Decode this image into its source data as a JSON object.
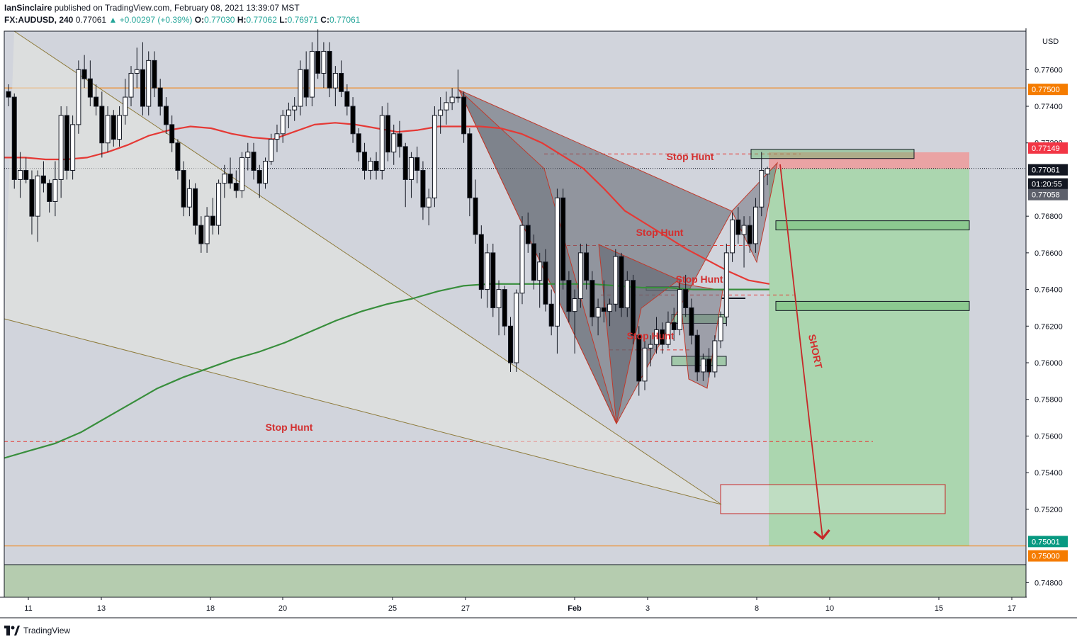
{
  "header": {
    "publisher": "IanSinclaire",
    "published_text": "published on TradingView.com, February 08, 2021 13:39:07 MST",
    "symbol": "FX:AUDUSD, 240",
    "last": "0.77061",
    "change": "▲ +0.00297 (+0.39%)",
    "open_label": "O:",
    "open": "0.77030",
    "high_label": "H:",
    "high": "0.77062",
    "low_label": "L:",
    "low": "0.76971",
    "close_label": "C:",
    "close": "0.77061"
  },
  "footer": {
    "brand": "TradingView",
    "logo_icon": "tradingview-logo-icon"
  },
  "colors": {
    "background": "#d1d4dc",
    "bull_candle": "#ffffff",
    "bear_candle": "#000000",
    "ema_fast": "#e53935",
    "ema_slow": "#388e3c",
    "pattern_fill": "#5d606b",
    "annotation_red": "#c62828",
    "profit_zone": "#a5d6a7",
    "loss_zone": "#ef9a9a",
    "level_line": "#f57c00"
  },
  "chart_data": {
    "type": "candlestick",
    "symbol": "FX:AUDUSD",
    "timeframe": "240",
    "currency": "USD",
    "ylim": [
      0.7472,
      0.7781
    ],
    "y_ticks": [
      "0.77600",
      "0.77400",
      "0.77200",
      "0.76800",
      "0.76600",
      "0.76400",
      "0.76200",
      "0.76000",
      "0.75800",
      "0.75600",
      "0.75400",
      "0.75200",
      "0.74800"
    ],
    "x_ticks": [
      "11",
      "13",
      "18",
      "20",
      "25",
      "27",
      "Feb",
      "3",
      "8",
      "10",
      "15",
      "17"
    ],
    "price_labels": [
      {
        "text": "USD",
        "kind": "unit"
      },
      {
        "text": "0.77500",
        "kind": "level",
        "color": "#f57c00"
      },
      {
        "text": "0.77149",
        "kind": "stop",
        "color": "#f23645"
      },
      {
        "text": "0.77061",
        "kind": "last",
        "color": "#131722"
      },
      {
        "text": "01:20:55",
        "kind": "countdown",
        "color": "#131722"
      },
      {
        "text": "0.77058",
        "kind": "entry",
        "color": "#5d606b"
      },
      {
        "text": "0.75001",
        "kind": "target",
        "color": "#089981"
      },
      {
        "text": "0.75000",
        "kind": "level",
        "color": "#f57c00"
      }
    ],
    "annotations": [
      {
        "text": "Stop Hunt",
        "price": 0.7716
      },
      {
        "text": "Stop Hunt",
        "price": 0.7669
      },
      {
        "text": "Stop Hunt",
        "price": 0.7641
      },
      {
        "text": "Stop Hunt",
        "price": 0.761
      },
      {
        "text": "Stop Hunt",
        "price": 0.756
      },
      {
        "text": "SHORT",
        "price": 0.76
      }
    ],
    "position": {
      "side": "short",
      "entry": 0.77058,
      "stop": 0.77149,
      "target": 0.75001
    },
    "horizontal_levels": [
      0.775,
      0.75
    ],
    "candles_ohlc": [
      [
        0.7748,
        0.7752,
        0.774,
        0.7745
      ],
      [
        0.7745,
        0.7747,
        0.7695,
        0.77
      ],
      [
        0.77,
        0.7715,
        0.769,
        0.7705
      ],
      [
        0.7705,
        0.7712,
        0.7698,
        0.77
      ],
      [
        0.77,
        0.7705,
        0.767,
        0.768
      ],
      [
        0.768,
        0.7705,
        0.7666,
        0.7702
      ],
      [
        0.7702,
        0.771,
        0.7693,
        0.7698
      ],
      [
        0.7698,
        0.77,
        0.7682,
        0.7688
      ],
      [
        0.7688,
        0.771,
        0.768,
        0.77
      ],
      [
        0.77,
        0.774,
        0.769,
        0.7735
      ],
      [
        0.7735,
        0.774,
        0.77,
        0.7705
      ],
      [
        0.7705,
        0.7735,
        0.77,
        0.773
      ],
      [
        0.773,
        0.7765,
        0.7725,
        0.776
      ],
      [
        0.776,
        0.7768,
        0.775,
        0.7755
      ],
      [
        0.7755,
        0.7765,
        0.774,
        0.7745
      ],
      [
        0.7745,
        0.7752,
        0.7735,
        0.774
      ],
      [
        0.774,
        0.7748,
        0.7712,
        0.772
      ],
      [
        0.772,
        0.774,
        0.7715,
        0.7735
      ],
      [
        0.7735,
        0.7738,
        0.7718,
        0.7722
      ],
      [
        0.7722,
        0.774,
        0.7718,
        0.7735
      ],
      [
        0.7735,
        0.7755,
        0.773,
        0.7745
      ],
      [
        0.7745,
        0.7762,
        0.774,
        0.7758
      ],
      [
        0.7758,
        0.7772,
        0.775,
        0.776
      ],
      [
        0.776,
        0.7775,
        0.7735,
        0.774
      ],
      [
        0.774,
        0.777,
        0.7735,
        0.7765
      ],
      [
        0.7765,
        0.777,
        0.7745,
        0.775
      ],
      [
        0.775,
        0.7755,
        0.7735,
        0.774
      ],
      [
        0.774,
        0.7745,
        0.7725,
        0.773
      ],
      [
        0.773,
        0.7735,
        0.7715,
        0.772
      ],
      [
        0.772,
        0.7722,
        0.77,
        0.7705
      ],
      [
        0.7705,
        0.771,
        0.768,
        0.7685
      ],
      [
        0.7685,
        0.77,
        0.768,
        0.7695
      ],
      [
        0.7695,
        0.7698,
        0.767,
        0.7675
      ],
      [
        0.7675,
        0.768,
        0.766,
        0.7665
      ],
      [
        0.7665,
        0.7685,
        0.766,
        0.768
      ],
      [
        0.768,
        0.769,
        0.767,
        0.7675
      ],
      [
        0.7675,
        0.77,
        0.767,
        0.7698
      ],
      [
        0.7698,
        0.7708,
        0.769,
        0.7703
      ],
      [
        0.7703,
        0.7712,
        0.7695,
        0.7698
      ],
      [
        0.7698,
        0.7705,
        0.769,
        0.7694
      ],
      [
        0.7694,
        0.7715,
        0.769,
        0.7712
      ],
      [
        0.7712,
        0.772,
        0.7705,
        0.7715
      ],
      [
        0.7715,
        0.772,
        0.77,
        0.7705
      ],
      [
        0.7705,
        0.7708,
        0.769,
        0.7698
      ],
      [
        0.7698,
        0.7712,
        0.7695,
        0.771
      ],
      [
        0.771,
        0.7725,
        0.7708,
        0.7722
      ],
      [
        0.7722,
        0.773,
        0.7715,
        0.7725
      ],
      [
        0.7725,
        0.7738,
        0.772,
        0.7735
      ],
      [
        0.7735,
        0.7742,
        0.7728,
        0.7738
      ],
      [
        0.7738,
        0.7745,
        0.7732,
        0.774
      ],
      [
        0.774,
        0.7765,
        0.7735,
        0.776
      ],
      [
        0.776,
        0.777,
        0.774,
        0.7745
      ],
      [
        0.7745,
        0.7775,
        0.774,
        0.777
      ],
      [
        0.777,
        0.7782,
        0.7755,
        0.7758
      ],
      [
        0.7758,
        0.7775,
        0.775,
        0.777
      ],
      [
        0.777,
        0.7775,
        0.7745,
        0.775
      ],
      [
        0.775,
        0.7762,
        0.774,
        0.7758
      ],
      [
        0.7758,
        0.7765,
        0.7745,
        0.7748
      ],
      [
        0.7748,
        0.7752,
        0.7735,
        0.774
      ],
      [
        0.774,
        0.7745,
        0.772,
        0.7725
      ],
      [
        0.7725,
        0.7728,
        0.771,
        0.7715
      ],
      [
        0.7715,
        0.772,
        0.77,
        0.7705
      ],
      [
        0.7705,
        0.7712,
        0.77,
        0.771
      ],
      [
        0.771,
        0.7715,
        0.77,
        0.7705
      ],
      [
        0.7705,
        0.774,
        0.77,
        0.7735
      ],
      [
        0.7735,
        0.7742,
        0.771,
        0.7715
      ],
      [
        0.7715,
        0.773,
        0.7708,
        0.7725
      ],
      [
        0.7725,
        0.7732,
        0.7712,
        0.7718
      ],
      [
        0.7718,
        0.772,
        0.7685,
        0.77
      ],
      [
        0.77,
        0.7715,
        0.769,
        0.7712
      ],
      [
        0.7712,
        0.7718,
        0.7698,
        0.7705
      ],
      [
        0.7705,
        0.771,
        0.7678,
        0.7685
      ],
      [
        0.7685,
        0.7695,
        0.7675,
        0.769
      ],
      [
        0.769,
        0.774,
        0.7685,
        0.7735
      ],
      [
        0.7735,
        0.7745,
        0.7725,
        0.7738
      ],
      [
        0.7738,
        0.7748,
        0.773,
        0.7742
      ],
      [
        0.7742,
        0.775,
        0.7738,
        0.7745
      ],
      [
        0.7745,
        0.776,
        0.7742,
        0.7745
      ],
      [
        0.7745,
        0.7748,
        0.772,
        0.7725
      ],
      [
        0.7725,
        0.7728,
        0.768,
        0.769
      ],
      [
        0.769,
        0.77,
        0.7665,
        0.767
      ],
      [
        0.767,
        0.7675,
        0.7635,
        0.764
      ],
      [
        0.764,
        0.7665,
        0.763,
        0.766
      ],
      [
        0.766,
        0.7665,
        0.7625,
        0.763
      ],
      [
        0.763,
        0.7645,
        0.7615,
        0.764
      ],
      [
        0.764,
        0.7642,
        0.7615,
        0.762
      ],
      [
        0.762,
        0.7625,
        0.7595,
        0.76
      ],
      [
        0.76,
        0.764,
        0.7595,
        0.7638
      ],
      [
        0.7638,
        0.768,
        0.7632,
        0.7675
      ],
      [
        0.7675,
        0.7682,
        0.766,
        0.7665
      ],
      [
        0.7665,
        0.767,
        0.764,
        0.7645
      ],
      [
        0.7645,
        0.766,
        0.763,
        0.7655
      ],
      [
        0.7655,
        0.7662,
        0.7628,
        0.7632
      ],
      [
        0.7632,
        0.764,
        0.7615,
        0.762
      ],
      [
        0.762,
        0.7695,
        0.7605,
        0.769
      ],
      [
        0.769,
        0.7695,
        0.764,
        0.7645
      ],
      [
        0.7645,
        0.765,
        0.7622,
        0.7628
      ],
      [
        0.7628,
        0.764,
        0.7605,
        0.7635
      ],
      [
        0.7635,
        0.7665,
        0.763,
        0.766
      ],
      [
        0.766,
        0.7665,
        0.764,
        0.7645
      ],
      [
        0.7645,
        0.765,
        0.762,
        0.7625
      ],
      [
        0.7625,
        0.7635,
        0.7615,
        0.763
      ],
      [
        0.763,
        0.7645,
        0.7622,
        0.7628
      ],
      [
        0.7628,
        0.7635,
        0.762,
        0.7632
      ],
      [
        0.7632,
        0.7662,
        0.7628,
        0.7658
      ],
      [
        0.7658,
        0.766,
        0.7625,
        0.763
      ],
      [
        0.763,
        0.765,
        0.7625,
        0.7645
      ],
      [
        0.7645,
        0.7648,
        0.761,
        0.7615
      ],
      [
        0.7615,
        0.762,
        0.7582,
        0.759
      ],
      [
        0.759,
        0.7612,
        0.7585,
        0.7608
      ],
      [
        0.7608,
        0.7615,
        0.7598,
        0.761
      ],
      [
        0.761,
        0.7625,
        0.7605,
        0.7618
      ],
      [
        0.7618,
        0.7622,
        0.7605,
        0.761
      ],
      [
        0.761,
        0.7628,
        0.7608,
        0.7622
      ],
      [
        0.7622,
        0.763,
        0.7612,
        0.7618
      ],
      [
        0.7618,
        0.7645,
        0.7615,
        0.764
      ],
      [
        0.764,
        0.7648,
        0.7625,
        0.763
      ],
      [
        0.763,
        0.7635,
        0.761,
        0.7615
      ],
      [
        0.7615,
        0.7618,
        0.759,
        0.7595
      ],
      [
        0.7595,
        0.7605,
        0.759,
        0.7602
      ],
      [
        0.7602,
        0.7608,
        0.7592,
        0.7595
      ],
      [
        0.7595,
        0.7615,
        0.7592,
        0.7612
      ],
      [
        0.7612,
        0.7628,
        0.7608,
        0.7625
      ],
      [
        0.7625,
        0.7665,
        0.762,
        0.766
      ],
      [
        0.766,
        0.7682,
        0.7655,
        0.7678
      ],
      [
        0.7678,
        0.7685,
        0.7665,
        0.767
      ],
      [
        0.767,
        0.768,
        0.7652,
        0.7675
      ],
      [
        0.7675,
        0.768,
        0.766,
        0.7665
      ],
      [
        0.7665,
        0.769,
        0.766,
        0.7685
      ],
      [
        0.7685,
        0.7715,
        0.768,
        0.7705
      ],
      [
        0.7703,
        0.7707,
        0.7697,
        0.7706
      ]
    ],
    "series": [
      {
        "name": "",
        "type": "ema",
        "values": [
          0.7712,
          0.7712,
          0.7711,
          0.7711,
          0.7712,
          0.7715,
          0.7719,
          0.7724,
          0.7727,
          0.7729,
          0.7728,
          0.7725,
          0.7723,
          0.7722,
          0.7726,
          0.773,
          0.7731,
          0.773,
          0.7728,
          0.7726,
          0.7727,
          0.7729,
          0.7729,
          0.7729,
          0.7728,
          0.7725,
          0.772,
          0.7713,
          0.7706,
          0.7695,
          0.7683,
          0.7676,
          0.7669,
          0.7662,
          0.7656,
          0.765,
          0.7645,
          0.7643
        ]
      },
      {
        "name": "",
        "type": "ema",
        "values": [
          0.7548,
          0.7552,
          0.7556,
          0.7562,
          0.757,
          0.7578,
          0.7586,
          0.7592,
          0.7597,
          0.7602,
          0.7606,
          0.7611,
          0.7617,
          0.7623,
          0.7628,
          0.7632,
          0.7635,
          0.7639,
          0.7642,
          0.7643,
          0.7643,
          0.7643,
          0.7643,
          0.7643,
          0.7642,
          0.7641,
          0.7641,
          0.764,
          0.764,
          0.764,
          0.764
        ]
      }
    ]
  }
}
